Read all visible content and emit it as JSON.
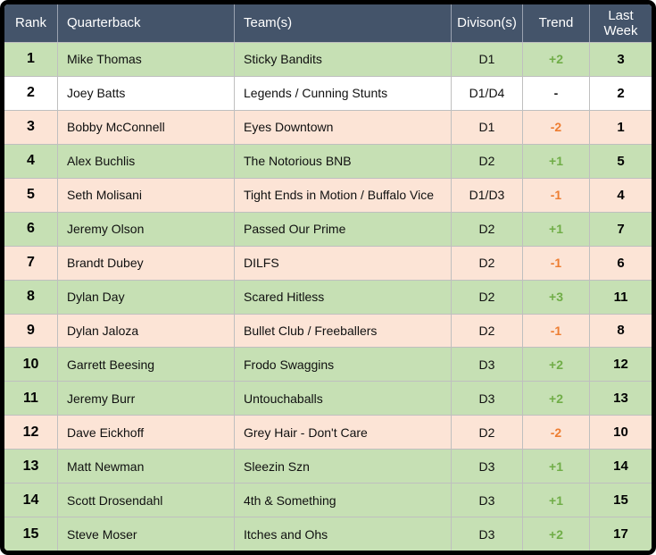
{
  "table": {
    "columns": [
      {
        "key": "rank",
        "label": "Rank"
      },
      {
        "key": "quarterback",
        "label": "Quarterback"
      },
      {
        "key": "teams",
        "label": "Team(s)"
      },
      {
        "key": "divisions",
        "label": "Divison(s)"
      },
      {
        "key": "trend",
        "label": "Trend"
      },
      {
        "key": "last_week",
        "label": "Last Week"
      }
    ],
    "rows": [
      {
        "rank": "1",
        "quarterback": "Mike Thomas",
        "teams": "Sticky Bandits",
        "divisions": "D1",
        "trend": "+2",
        "trend_color": "green",
        "last_week": "3",
        "row_color": "green"
      },
      {
        "rank": "2",
        "quarterback": "Joey Batts",
        "teams": "Legends / Cunning Stunts",
        "divisions": "D1/D4",
        "trend": "-",
        "trend_color": "neutral",
        "last_week": "2",
        "row_color": "white"
      },
      {
        "rank": "3",
        "quarterback": "Bobby McConnell",
        "teams": "Eyes Downtown",
        "divisions": "D1",
        "trend": "-2",
        "trend_color": "orange",
        "last_week": "1",
        "row_color": "peach"
      },
      {
        "rank": "4",
        "quarterback": "Alex Buchlis",
        "teams": "The Notorious BNB",
        "divisions": "D2",
        "trend": "+1",
        "trend_color": "green",
        "last_week": "5",
        "row_color": "green"
      },
      {
        "rank": "5",
        "quarterback": "Seth Molisani",
        "teams": "Tight Ends in Motion / Buffalo Vice",
        "divisions": "D1/D3",
        "trend": "-1",
        "trend_color": "orange",
        "last_week": "4",
        "row_color": "peach"
      },
      {
        "rank": "6",
        "quarterback": "Jeremy Olson",
        "teams": "Passed Our Prime",
        "divisions": "D2",
        "trend": "+1",
        "trend_color": "green",
        "last_week": "7",
        "row_color": "green"
      },
      {
        "rank": "7",
        "quarterback": "Brandt Dubey",
        "teams": "DILFS",
        "divisions": "D2",
        "trend": "-1",
        "trend_color": "orange",
        "last_week": "6",
        "row_color": "peach"
      },
      {
        "rank": "8",
        "quarterback": "Dylan Day",
        "teams": "Scared Hitless",
        "divisions": "D2",
        "trend": "+3",
        "trend_color": "green",
        "last_week": "11",
        "row_color": "green"
      },
      {
        "rank": "9",
        "quarterback": "Dylan Jaloza",
        "teams": "Bullet Club / Freeballers",
        "divisions": "D2",
        "trend": "-1",
        "trend_color": "orange",
        "last_week": "8",
        "row_color": "peach"
      },
      {
        "rank": "10",
        "quarterback": "Garrett Beesing",
        "teams": "Frodo Swaggins",
        "divisions": "D3",
        "trend": "+2",
        "trend_color": "green",
        "last_week": "12",
        "row_color": "green"
      },
      {
        "rank": "11",
        "quarterback": "Jeremy Burr",
        "teams": "Untouchaballs",
        "divisions": "D3",
        "trend": "+2",
        "trend_color": "green",
        "last_week": "13",
        "row_color": "green"
      },
      {
        "rank": "12",
        "quarterback": "Dave Eickhoff",
        "teams": "Grey Hair - Don't Care",
        "divisions": "D2",
        "trend": "-2",
        "trend_color": "orange",
        "last_week": "10",
        "row_color": "peach"
      },
      {
        "rank": "13",
        "quarterback": "Matt Newman",
        "teams": "Sleezin Szn",
        "divisions": "D3",
        "trend": "+1",
        "trend_color": "green",
        "last_week": "14",
        "row_color": "green"
      },
      {
        "rank": "14",
        "quarterback": "Scott Drosendahl",
        "teams": "4th & Something",
        "divisions": "D3",
        "trend": "+1",
        "trend_color": "green",
        "last_week": "15",
        "row_color": "green"
      },
      {
        "rank": "15",
        "quarterback": "Steve Moser",
        "teams": "Itches and Ohs",
        "divisions": "D3",
        "trend": "+2",
        "trend_color": "green",
        "last_week": "17",
        "row_color": "green"
      }
    ]
  },
  "colors": {
    "header_bg": "#44546A",
    "header_text": "#FFFFFF",
    "row_green": "#C6E0B4",
    "row_peach": "#FCE4D6",
    "row_white": "#FFFFFF",
    "trend_up": "#70AD47",
    "trend_down": "#ED7D31",
    "grid_line": "#BFBFBF",
    "frame_border": "#000000"
  }
}
